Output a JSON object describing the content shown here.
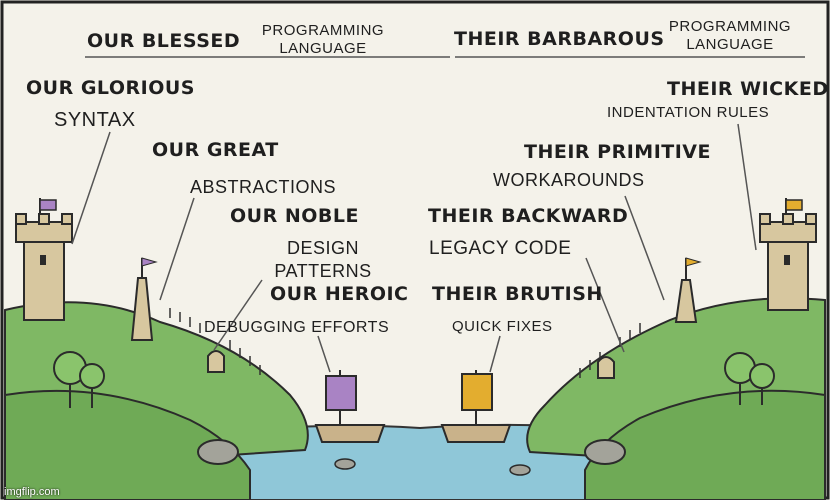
{
  "labels": {
    "our_blessed": "OUR BLESSED",
    "programming_language_left": "PROGRAMMING LANGUAGE",
    "their_barbarous": "THEIR BARBAROUS",
    "programming_language_right": "PROGRAMMING LANGUAGE",
    "our_glorious": "OUR GLORIOUS",
    "syntax": "SYNTAX",
    "their_wicked": "THEIR WICKED",
    "indentation_rules": "INDENTATION RULES",
    "our_great": "OUR GREAT",
    "abstractions": "ABSTRACTIONS",
    "their_primitive": "THEIR PRIMITIVE",
    "workarounds": "WORKAROUNDS",
    "our_noble": "OUR NOBLE",
    "design_patterns": "DESIGN PATTERNS",
    "their_backward": "THEIR BACKWARD",
    "legacy_code": "LEGACY CODE",
    "our_heroic": "OUR HEROIC",
    "debugging_efforts": "DEBUGGING EFFORTS",
    "their_brutish": "THEIR BRUTISH",
    "quick_fixes": "QUICK FIXES"
  },
  "watermark": "imgflip.com",
  "colors": {
    "sky": "#f4f2ea",
    "grass": "#7fb864",
    "grass_dark": "#5f9a4c",
    "water": "#8fc7d8",
    "stone": "#d7c79f",
    "our_flag": "#a983c4",
    "their_flag": "#e3ad2f"
  }
}
